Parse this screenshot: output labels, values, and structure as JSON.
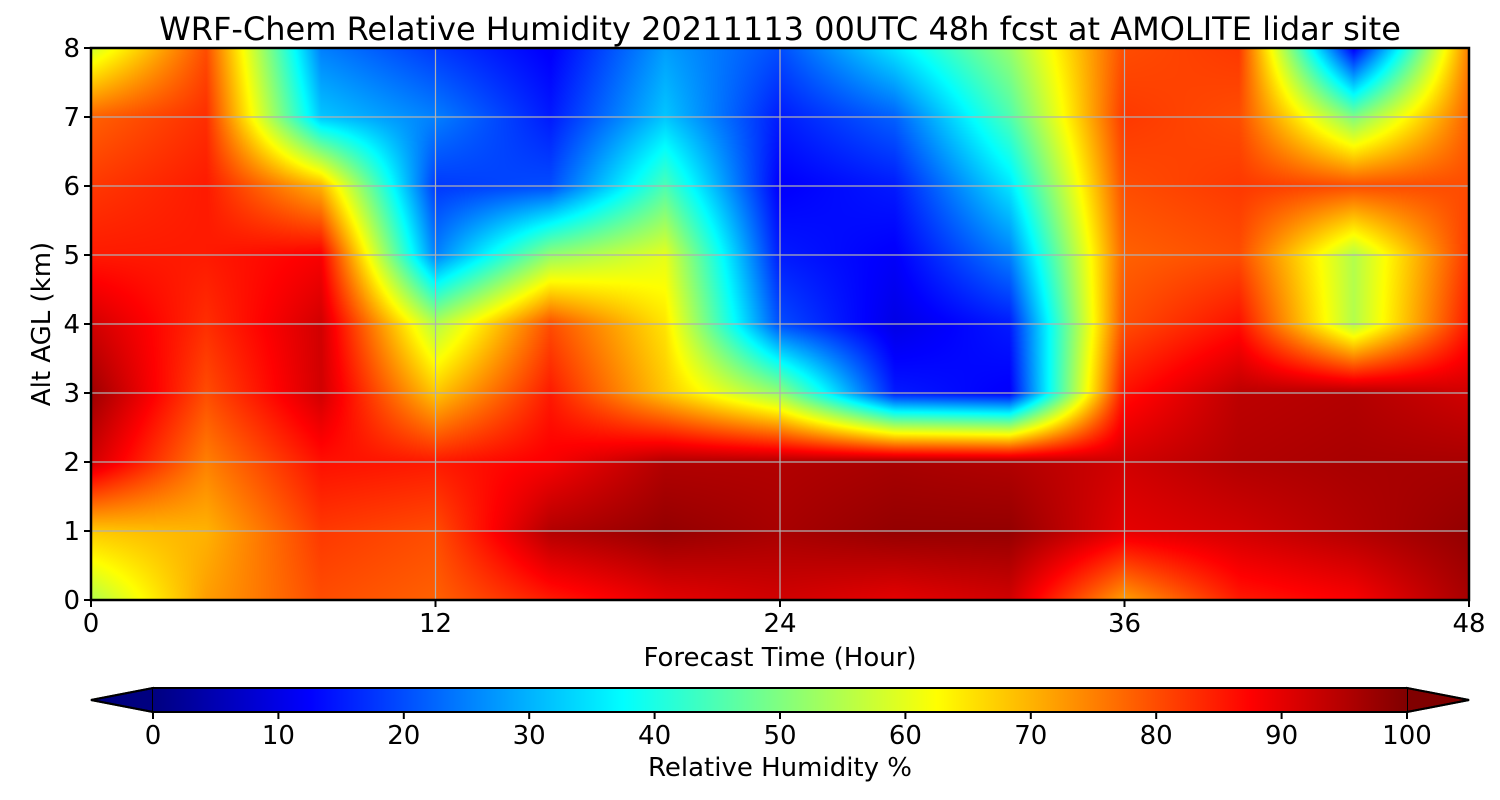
{
  "chart_data": {
    "type": "heatmap",
    "title": "WRF-Chem Relative Humidity 20211113 00UTC 48h fcst at AMOLITE lidar site",
    "xlabel": "Forecast Time (Hour)",
    "ylabel": "Alt AGL (km)",
    "xlim": [
      0,
      48
    ],
    "ylim": [
      0,
      8
    ],
    "x_ticks": [
      0,
      12,
      24,
      36,
      48
    ],
    "y_ticks": [
      0,
      1,
      2,
      3,
      4,
      5,
      6,
      7,
      8
    ],
    "grid": true,
    "colormap": "jet",
    "colorbar": {
      "label": "Relative Humidity %",
      "range": [
        0,
        100
      ],
      "ticks": [
        0,
        10,
        20,
        30,
        40,
        50,
        60,
        70,
        80,
        90,
        100
      ],
      "extend": "both",
      "orientation": "horizontal"
    },
    "x": [
      0,
      4,
      8,
      12,
      16,
      20,
      24,
      28,
      32,
      36,
      40,
      44,
      48
    ],
    "y": [
      0,
      1,
      2,
      3,
      4,
      5,
      6,
      7,
      8
    ],
    "z": [
      [
        55,
        72,
        80,
        78,
        85,
        90,
        92,
        90,
        92,
        72,
        85,
        88,
        96
      ],
      [
        68,
        70,
        82,
        80,
        95,
        98,
        96,
        98,
        98,
        90,
        92,
        95,
        98
      ],
      [
        92,
        75,
        86,
        85,
        88,
        95,
        95,
        96,
        95,
        92,
        95,
        96,
        96
      ],
      [
        97,
        80,
        92,
        68,
        85,
        68,
        52,
        15,
        12,
        86,
        94,
        95,
        92
      ],
      [
        92,
        83,
        92,
        55,
        80,
        65,
        20,
        10,
        15,
        80,
        86,
        55,
        85
      ],
      [
        85,
        85,
        88,
        25,
        52,
        60,
        15,
        12,
        25,
        78,
        80,
        55,
        82
      ],
      [
        82,
        85,
        70,
        18,
        20,
        45,
        12,
        15,
        35,
        80,
        82,
        80,
        80
      ],
      [
        78,
        83,
        32,
        25,
        15,
        32,
        15,
        22,
        45,
        82,
        80,
        50,
        78
      ],
      [
        58,
        80,
        25,
        18,
        12,
        28,
        20,
        35,
        52,
        80,
        82,
        12,
        75
      ]
    ]
  }
}
